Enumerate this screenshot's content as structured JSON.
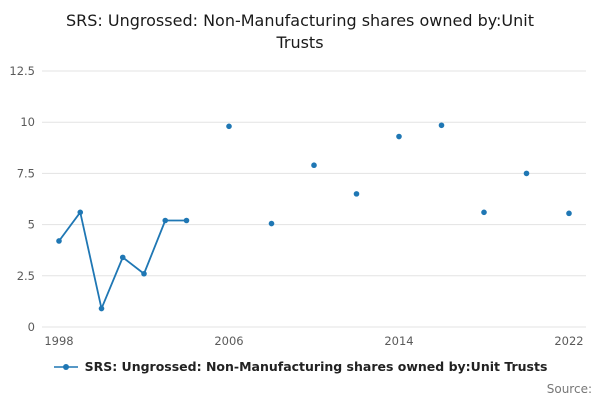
{
  "title": "SRS: Ungrossed: Non-Manufacturing shares owned by:Unit Trusts",
  "legend": {
    "label": "SRS: Ungrossed: Non-Manufacturing shares owned by:Unit Trusts"
  },
  "source_label": "Source:",
  "colors": {
    "series": "#1f77b4",
    "grid": "#e3e3e3",
    "tick_text": "#5a5a5a"
  },
  "chart_data": {
    "type": "line",
    "title": "SRS: Ungrossed: Non-Manufacturing shares owned by:Unit Trusts",
    "xlabel": "",
    "ylabel": "",
    "x": [
      1998,
      1999,
      2000,
      2001,
      2002,
      2003,
      2004,
      2006,
      2008,
      2010,
      2012,
      2014,
      2016,
      2018,
      2020,
      2022
    ],
    "values": [
      4.2,
      5.6,
      0.9,
      3.4,
      2.6,
      5.2,
      5.2,
      9.8,
      5.05,
      7.9,
      6.5,
      9.3,
      9.85,
      5.6,
      7.5,
      5.55
    ],
    "connected_through_index": 6,
    "xlim": [
      1997.2,
      2022.8
    ],
    "ylim": [
      0,
      12.5
    ],
    "y_ticks": [
      0,
      2.5,
      5,
      7.5,
      10,
      12.5
    ],
    "y_tick_labels": [
      "0",
      "2.5",
      "5",
      "7.5",
      "10",
      "12.5"
    ],
    "x_ticks": [
      1998,
      2006,
      2014,
      2022
    ],
    "x_tick_labels": [
      "1998",
      "2006",
      "2014",
      "2022"
    ],
    "grid": "horizontal",
    "legend_position": "bottom"
  }
}
